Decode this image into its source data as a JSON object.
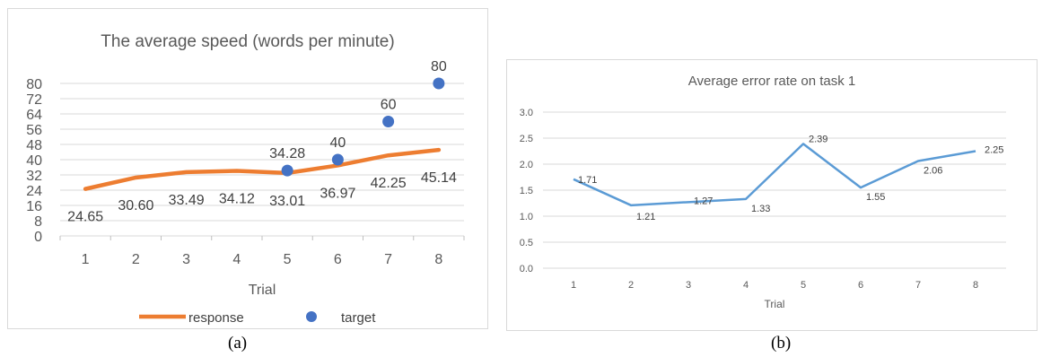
{
  "captions": {
    "a": "(a)",
    "b": "(b)"
  },
  "colors": {
    "response": "#ED7D31",
    "target": "#4472C4",
    "error_line": "#5B9BD5",
    "grid": "#d9d9d9",
    "text": "#595959"
  },
  "chart_data": [
    {
      "type": "line",
      "title": "The average speed (words per minute)",
      "xlabel": "Trial",
      "ylabel": "",
      "categories": [
        "1",
        "2",
        "3",
        "4",
        "5",
        "6",
        "7",
        "8"
      ],
      "yticks": [
        "0",
        "8",
        "16",
        "24",
        "32",
        "40",
        "48",
        "56",
        "64",
        "72",
        "80"
      ],
      "ylim": [
        0,
        80
      ],
      "grid": true,
      "legend_position": "bottom",
      "series": [
        {
          "name": "response",
          "type": "line",
          "values": [
            24.65,
            30.6,
            33.49,
            34.12,
            33.01,
            36.97,
            42.25,
            45.14
          ],
          "labels": [
            "24.65",
            "30.60",
            "33.49",
            "34.12",
            "33.01",
            "36.97",
            "42.25",
            "45.14"
          ]
        },
        {
          "name": "target",
          "type": "scatter",
          "x": [
            "5",
            "6",
            "7",
            "8"
          ],
          "values": [
            34.28,
            40,
            60,
            80
          ],
          "labels": [
            "34.28",
            "40",
            "60",
            "80"
          ]
        }
      ]
    },
    {
      "type": "line",
      "title": "Average error rate on task 1",
      "xlabel": "Trial",
      "ylabel": "",
      "categories": [
        "1",
        "2",
        "3",
        "4",
        "5",
        "6",
        "7",
        "8"
      ],
      "yticks": [
        "0.0",
        "0.5",
        "1.0",
        "1.5",
        "2.0",
        "2.5",
        "3.0"
      ],
      "ylim": [
        0,
        3
      ],
      "grid": true,
      "series": [
        {
          "values": [
            1.71,
            1.21,
            1.27,
            1.33,
            2.39,
            1.55,
            2.06,
            2.25
          ],
          "labels": [
            "1.71",
            "1.21",
            "1.27",
            "1.33",
            "2.39",
            "1.55",
            "2.06",
            "2.25"
          ]
        }
      ]
    }
  ]
}
